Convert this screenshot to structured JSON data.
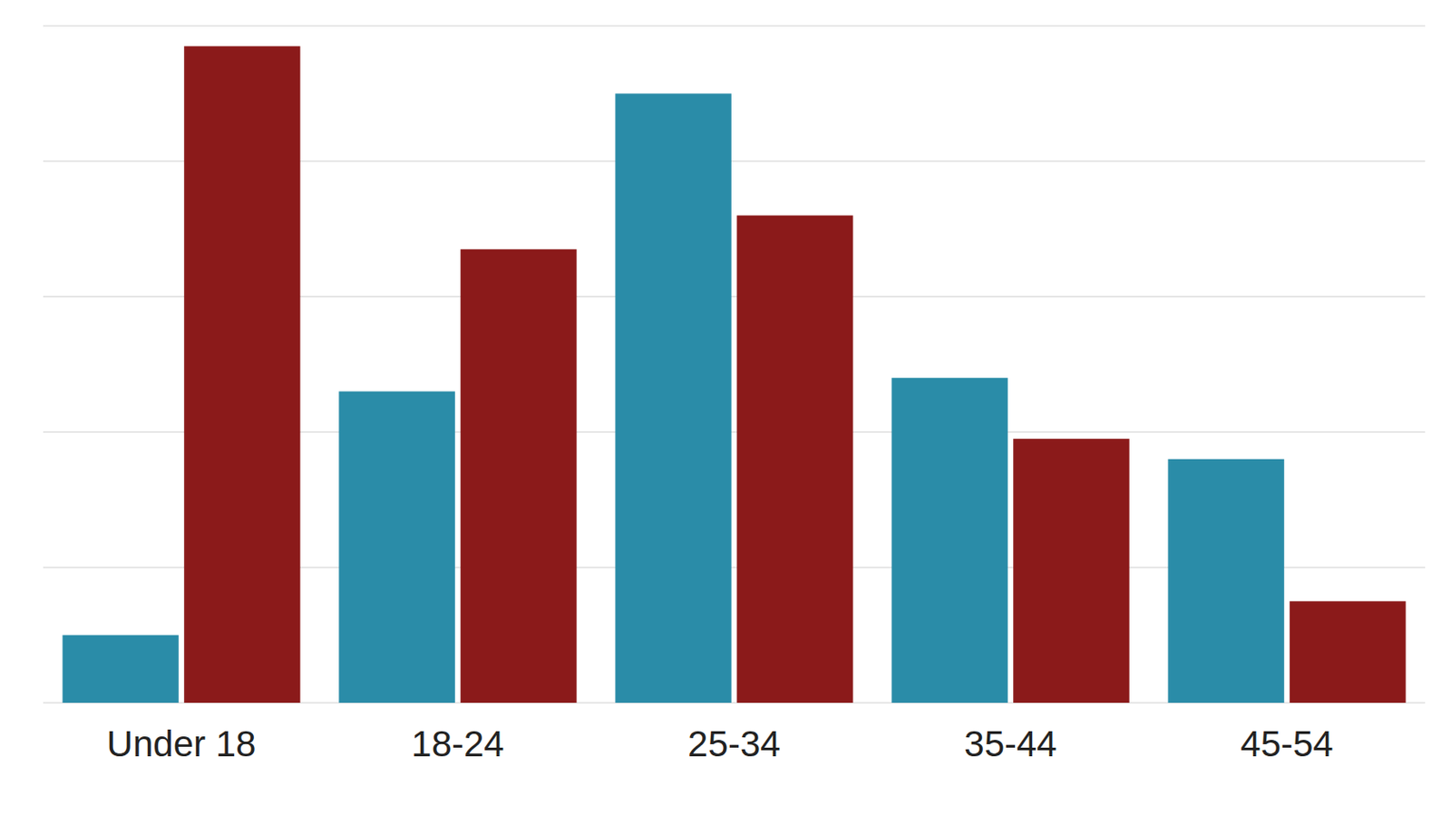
{
  "chart_data": {
    "type": "bar",
    "categories": [
      "Under 18",
      "18-24",
      "25-34",
      "35-44",
      "45-54"
    ],
    "series": [
      {
        "color": "#2A8CA8",
        "values": [
          10,
          46,
          90,
          48,
          36
        ]
      },
      {
        "color": "#8B1A1A",
        "values": [
          97,
          67,
          72,
          39,
          15
        ]
      }
    ],
    "ylim": [
      0,
      100
    ],
    "yticks": [
      0,
      20,
      40,
      60,
      80,
      100
    ],
    "grid": true,
    "tick_labels": "x"
  }
}
